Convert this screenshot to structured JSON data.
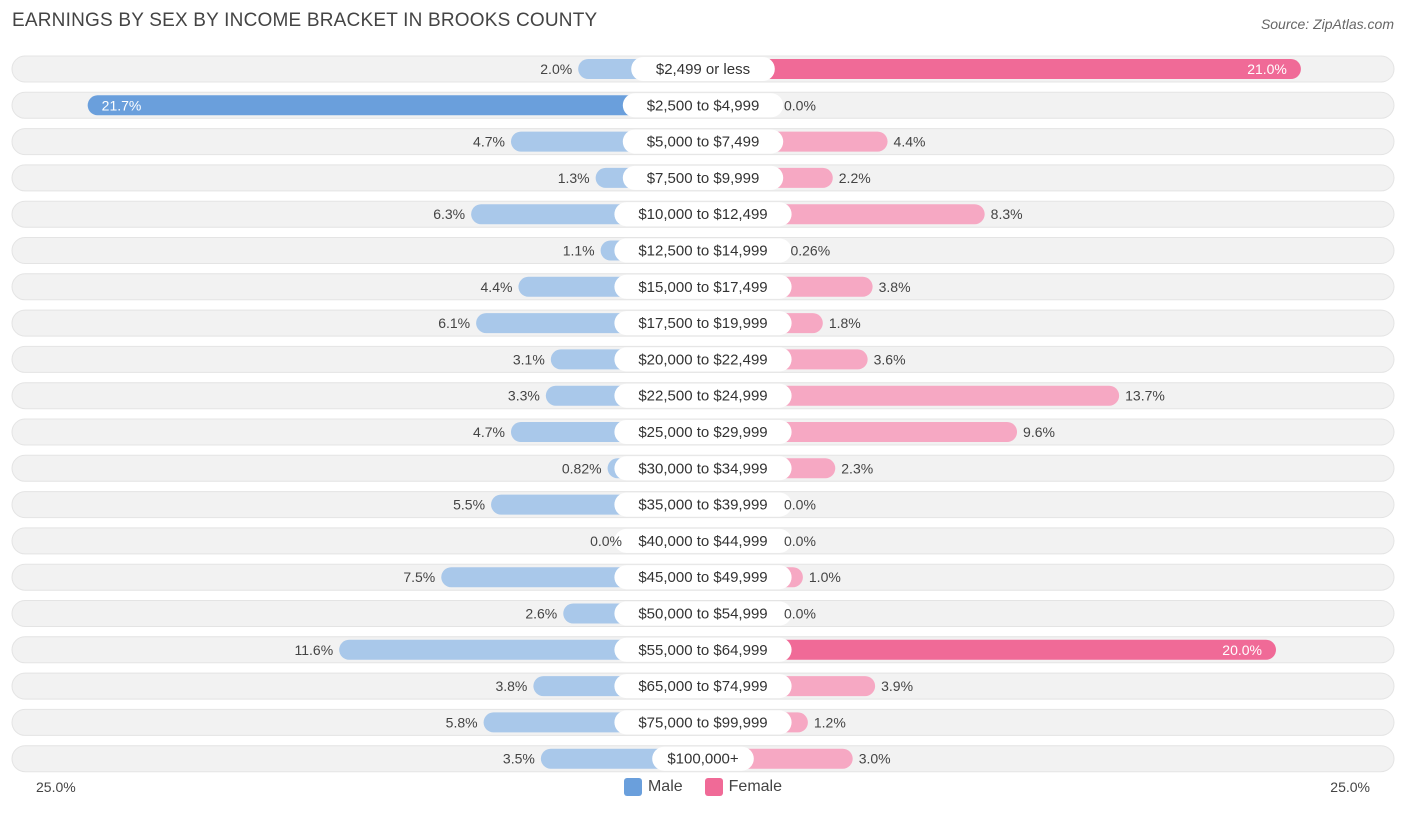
{
  "header": {
    "title": "EARNINGS BY SEX BY INCOME BRACKET IN BROOKS COUNTY",
    "source": "Source: ZipAtlas.com"
  },
  "colors": {
    "male_strong": "#6a9fdc",
    "male_light": "#a9c8ea",
    "female_strong": "#f06a97",
    "female_light": "#f6a8c3",
    "row_bg": "#f2f2f2"
  },
  "axis": {
    "left_label": "25.0%",
    "right_label": "25.0%"
  },
  "legend": {
    "male_label": "Male",
    "female_label": "Female"
  },
  "chart_data": {
    "type": "bar",
    "orientation": "horizontal-diverging",
    "title": "EARNINGS BY SEX BY INCOME BRACKET IN BROOKS COUNTY",
    "xlim": [
      -25,
      25
    ],
    "categories": [
      "$2,499 or less",
      "$2,500 to $4,999",
      "$5,000 to $7,499",
      "$7,500 to $9,999",
      "$10,000 to $12,499",
      "$12,500 to $14,999",
      "$15,000 to $17,499",
      "$17,500 to $19,999",
      "$20,000 to $22,499",
      "$22,500 to $24,999",
      "$25,000 to $29,999",
      "$30,000 to $34,999",
      "$35,000 to $39,999",
      "$40,000 to $44,999",
      "$45,000 to $49,999",
      "$50,000 to $54,999",
      "$55,000 to $64,999",
      "$65,000 to $74,999",
      "$75,000 to $99,999",
      "$100,000+"
    ],
    "series": [
      {
        "name": "Male",
        "values": [
          2.0,
          21.7,
          4.7,
          1.3,
          6.3,
          1.1,
          4.4,
          6.1,
          3.1,
          3.3,
          4.7,
          0.82,
          5.5,
          0.0,
          7.5,
          2.6,
          11.6,
          3.8,
          5.8,
          3.5
        ],
        "labels": [
          "2.0%",
          "21.7%",
          "4.7%",
          "1.3%",
          "6.3%",
          "1.1%",
          "4.4%",
          "6.1%",
          "3.1%",
          "3.3%",
          "4.7%",
          "0.82%",
          "5.5%",
          "0.0%",
          "7.5%",
          "2.6%",
          "11.6%",
          "3.8%",
          "5.8%",
          "3.5%"
        ]
      },
      {
        "name": "Female",
        "values": [
          21.0,
          0.0,
          4.4,
          2.2,
          8.3,
          0.26,
          3.8,
          1.8,
          3.6,
          13.7,
          9.6,
          2.3,
          0.0,
          0.0,
          1.0,
          0.0,
          20.0,
          3.9,
          1.2,
          3.0
        ],
        "labels": [
          "21.0%",
          "0.0%",
          "4.4%",
          "2.2%",
          "8.3%",
          "0.26%",
          "3.8%",
          "1.8%",
          "3.6%",
          "13.7%",
          "9.6%",
          "2.3%",
          "0.0%",
          "0.0%",
          "1.0%",
          "0.0%",
          "20.0%",
          "3.9%",
          "1.2%",
          "3.0%"
        ]
      }
    ]
  }
}
